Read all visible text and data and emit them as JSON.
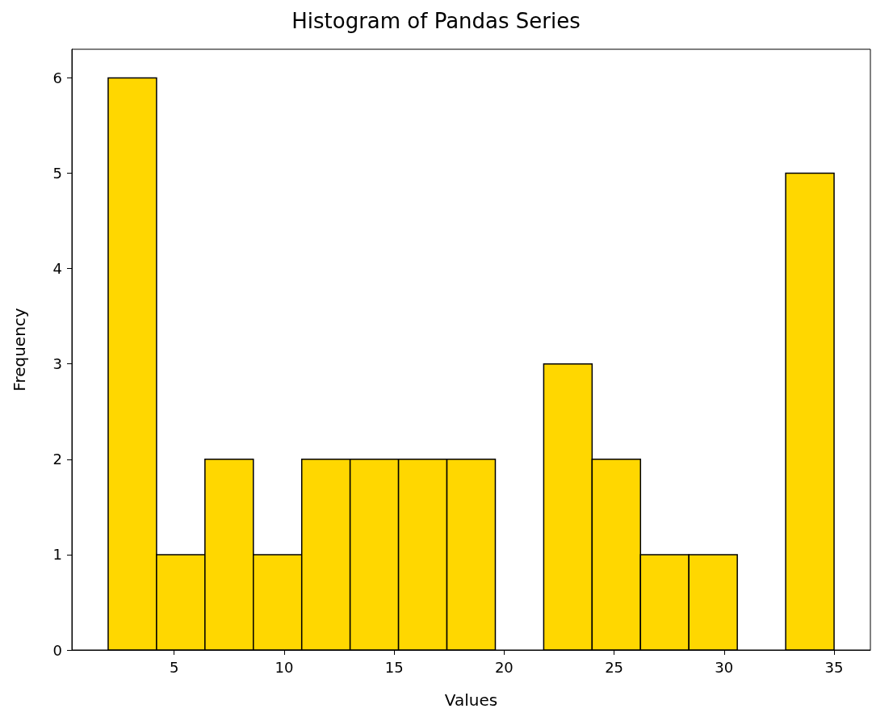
{
  "chart_data": {
    "type": "histogram",
    "title": "Histogram of Pandas Series",
    "xlabel": "Values",
    "ylabel": "Frequency",
    "bins": [
      2,
      4.2,
      6.4,
      8.6,
      10.8,
      13,
      15.2,
      17.4,
      19.6,
      21.8,
      24,
      26.2,
      28.4,
      30.6,
      32.8,
      35
    ],
    "values": [
      6,
      1,
      2,
      1,
      2,
      2,
      2,
      2,
      0,
      3,
      2,
      1,
      1,
      0,
      5
    ],
    "color": "#ffd700",
    "xlim": [
      0.35,
      36.65
    ],
    "xticks": [
      5,
      10,
      15,
      20,
      25,
      30,
      35
    ],
    "ylim": [
      0,
      6.3
    ],
    "yticks": [
      0,
      1,
      2,
      3,
      4,
      5,
      6
    ],
    "grid": false
  }
}
